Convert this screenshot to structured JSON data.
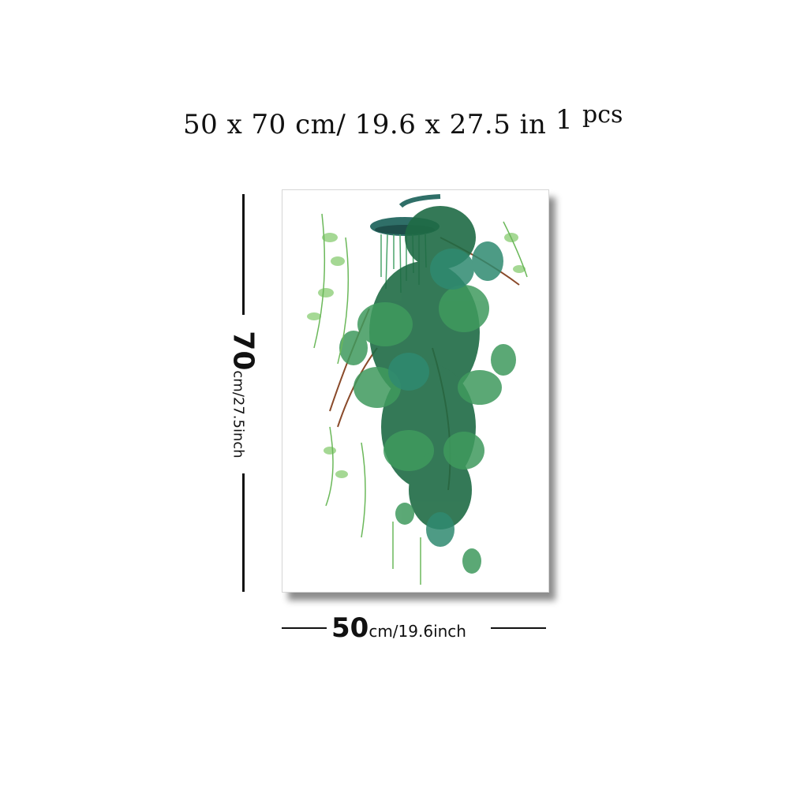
{
  "title": {
    "size_text": "50 x 70 cm/ 19.6 x 27.5 in",
    "qty_num": "1",
    "qty_unit": "pcs"
  },
  "height_dim": {
    "value": "70",
    "unit": "cm/27.5inch"
  },
  "width_dim": {
    "value": "50",
    "unit": "cm/19.6inch"
  },
  "artwork": {
    "subject": "watercolor trailing plant with shower head",
    "colors": {
      "leaf_dark": "#1f6b45",
      "leaf_mid": "#3f9a5e",
      "leaf_light": "#8fcf7a",
      "stem": "#8a4a2a"
    }
  }
}
